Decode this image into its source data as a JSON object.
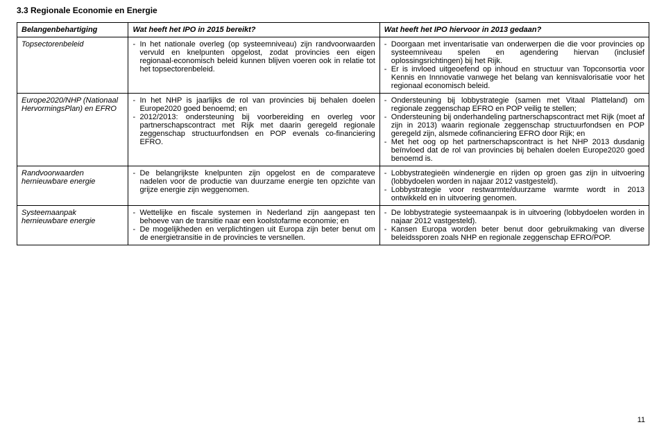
{
  "section_title": "3.3   Regionale Economie en Energie",
  "header": {
    "col1": "Belangenbehartiging",
    "col2": "Wat heeft het IPO in 2015 bereikt?",
    "col3": "Wat heeft het IPO hiervoor in 2013 gedaan?"
  },
  "rows": [
    {
      "label": "Topsectorenbeleid",
      "col2": [
        "In het nationale overleg (op systeemniveau) zijn randvoorwaarden vervuld en knelpunten opgelost, zodat provincies een eigen regionaal-economisch beleid kunnen blijven voeren ook in relatie tot het topsectorenbeleid."
      ],
      "col3": [
        "Doorgaan met inventarisatie van onderwerpen die die voor provincies op systeemniveau spelen en agendering hiervan (inclusief oplossingsrichtingen) bij het Rijk.",
        "Er is invloed uitgeoefend op inhoud en structuur van Topconsortia voor Kennis en Innnovatie vanwege het belang van kennisvalorisatie voor het regionaal economisch beleid."
      ]
    },
    {
      "label": "Europe2020/NHP (Nationaal HervormingsPlan) en EFRO",
      "col2": [
        "In het  NHP is jaarlijks de rol van provincies bij behalen doelen Europe2020 goed benoemd; en",
        "2012/2013: ondersteuning bij voorbereiding en overleg voor partnerschapscontract met Rijk met daarin geregeld regionale zeggenschap structuurfondsen en POP evenals co-financiering EFRO."
      ],
      "col3": [
        "Ondersteuning bij lobbystrategie (samen met Vitaal Platteland) om regionale zeggenschap EFRO en POP veilig te stellen;",
        "Ondersteuning bij onderhandeling partnerschapscontract met Rijk (moet af zijn in 2013) waarin regionale zeggenschap structuurfondsen en POP geregeld zijn, alsmede cofinanciering EFRO door Rijk; en",
        "Met het oog op het partnerschapscontract is het NHP 2013 dusdanig beïnvloed dat de rol van provincies bij behalen doelen Europe2020 goed benoemd is."
      ]
    },
    {
      "label": "Randvoorwaarden hernieuwbare energie",
      "col2": [
        "De belangrijkste knelpunten zijn opgelost en de comparateve nadelen voor de productie van duurzame energie ten opzichte van grijze energie zijn weggenomen."
      ],
      "col3": [
        "Lobbystrategieën windenergie en rijden op groen gas zijn in uitvoering (lobbydoelen worden in najaar 2012 vastgesteld).",
        "Lobbystrategie voor restwarmte/duurzame warmte wordt in 2013 ontwikkeld en in uitvoering genomen."
      ]
    },
    {
      "label": "Systeemaanpak hernieuwbare energie",
      "col2": [
        "Wettelijke en fiscale systemen in Nederland zijn aangepast ten behoeve van  de transitie naar een koolstofarme economie; en",
        "De mogelijkheden en verplichtingen uit Europa zijn beter benut om de energietransitie in de provincies te versnellen."
      ],
      "col3": [
        "De lobbystrategie systeemaanpak is in uitvoering (lobbydoelen worden in najaar 2012 vastgesteld).",
        "Kansen Europa worden beter benut door gebruikmaking van diverse beleidssporen zoals NHP en regionale zeggenschap EFRO/POP."
      ]
    }
  ],
  "page_number": "11"
}
